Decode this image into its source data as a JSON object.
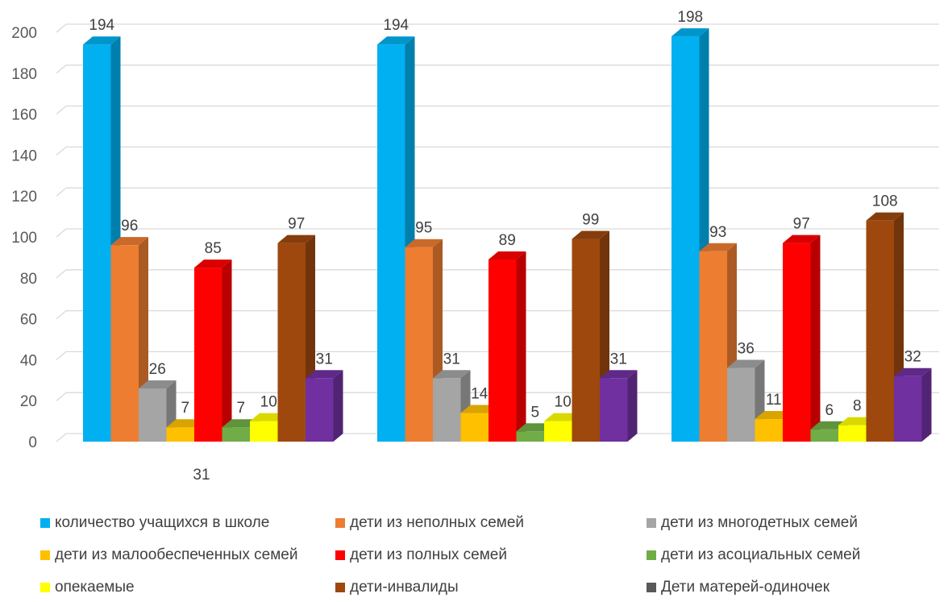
{
  "chart_data": {
    "type": "bar",
    "title": "",
    "xlabel": "",
    "ylabel": "",
    "ylim": [
      0,
      200
    ],
    "ytick_step": 20,
    "grid": true,
    "legend_position": "bottom",
    "groups": [
      "",
      "",
      ""
    ],
    "extra_label": "31",
    "series": [
      {
        "name": "количество учащихся в школе",
        "color": "#00B0F0",
        "values": [
          194,
          194,
          198
        ],
        "labels": [
          "194",
          "194",
          "198"
        ]
      },
      {
        "name": "дети из неполных семей",
        "color": "#ED7D31",
        "values": [
          96,
          95,
          93
        ],
        "labels": [
          "96",
          "95",
          "93"
        ]
      },
      {
        "name": "дети из многодетных семей",
        "color": "#A5A5A5",
        "values": [
          26,
          31,
          36
        ],
        "labels": [
          "26",
          "31",
          "36"
        ]
      },
      {
        "name": "дети из малообеспеченных семей",
        "color": "#FFC000",
        "values": [
          7,
          14,
          11
        ],
        "labels": [
          "7",
          "14",
          "11"
        ]
      },
      {
        "name": "дети из полных семей",
        "color": "#FF0000",
        "values": [
          85,
          89,
          97
        ],
        "labels": [
          "85",
          "89",
          "97"
        ]
      },
      {
        "name": "дети из асоциальных семей",
        "color": "#70AD47",
        "values": [
          7,
          5,
          6
        ],
        "labels": [
          "7",
          "5",
          "6"
        ]
      },
      {
        "name": "опекаемые",
        "color": "#FFFF00",
        "values": [
          10,
          10,
          8
        ],
        "labels": [
          "10",
          "10",
          "8"
        ]
      },
      {
        "name": "дети-инвалиды",
        "color": "#9E480E",
        "values": [
          97,
          99,
          108
        ],
        "labels": [
          "97",
          "99",
          "108"
        ]
      },
      {
        "name": "Дети матерей-одиночек",
        "color": "#7030A0",
        "values": [
          31,
          31,
          32
        ],
        "labels": [
          "31",
          "31",
          "32"
        ]
      }
    ],
    "legend": [
      {
        "label": "количество учащихся в школе",
        "color": "#00B0F0"
      },
      {
        "label": "дети из неполных семей",
        "color": "#ED7D31"
      },
      {
        "label": "дети из многодетных семей",
        "color": "#A5A5A5"
      },
      {
        "label": "дети из малообеспеченных семей",
        "color": "#FFC000"
      },
      {
        "label": "дети из полных семей",
        "color": "#FF0000"
      },
      {
        "label": "дети из асоциальных семей",
        "color": "#70AD47"
      },
      {
        "label": "опекаемые",
        "color": "#FFFF00"
      },
      {
        "label": "дети-инвалиды",
        "color": "#9E480E"
      },
      {
        "label": "Дети матерей-одиночек",
        "color": "#595959"
      }
    ]
  }
}
